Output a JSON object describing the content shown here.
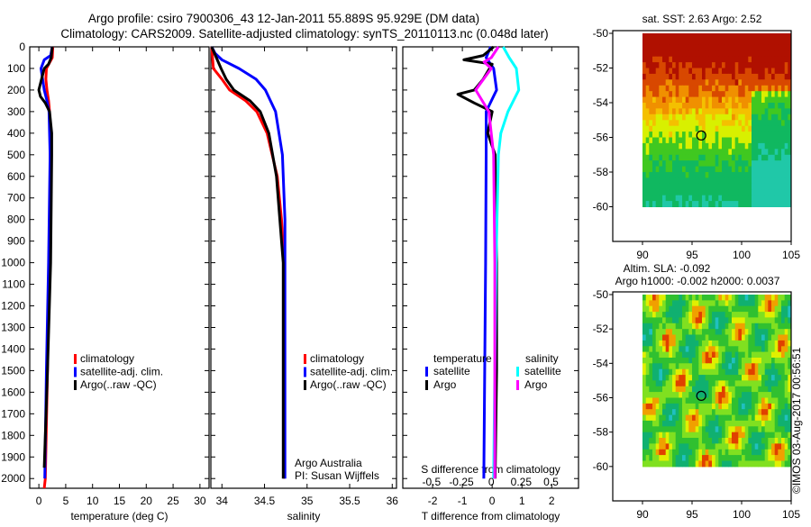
{
  "title_line1": "Argo profile: csiro 7900306_43 12-Jan-2011 55.889S 95.929E (DM data)",
  "title_line2": "Climatology: CARS2009. Satellite-adjusted climatology: synTS_20110113.nc (0.048d later)",
  "credit": "©IMOS 03-Aug-2017 00:56:51",
  "attribution_line1": "Argo Australia",
  "attribution_line2": "PI: Susan Wijffels",
  "colors": {
    "climatology": "#ff0000",
    "satellite": "#0000ff",
    "argo": "#000000",
    "sal_satellite": "#00ffff",
    "sal_argo": "#ff00ff"
  },
  "chart_data": [
    {
      "type": "line",
      "title": "",
      "xlabel": "temperature (deg C)",
      "ylabel": "",
      "xlim": [
        -1.7,
        31.7
      ],
      "ylim": [
        2045,
        0
      ],
      "xticks": [
        0,
        5,
        10,
        15,
        20,
        25,
        30
      ],
      "yticks": [
        0,
        100,
        200,
        300,
        400,
        500,
        600,
        700,
        800,
        900,
        1000,
        1100,
        1200,
        1300,
        1400,
        1500,
        1600,
        1700,
        1800,
        1900,
        2000
      ],
      "legend": [
        "climatology",
        "satellite-adj. clim.",
        "Argo(..raw -QC)"
      ],
      "series": [
        {
          "name": "climatology",
          "color": "#ff0000",
          "depth": [
            0,
            50,
            100,
            150,
            200,
            250,
            300,
            400,
            600,
            1000,
            1500,
            2000,
            2045
          ],
          "values": [
            2.6,
            2.5,
            1.4,
            1.3,
            1.5,
            1.8,
            2.0,
            2.1,
            2.1,
            1.9,
            1.6,
            1.2,
            1.0
          ]
        },
        {
          "name": "satellite-adj. clim.",
          "color": "#0000ff",
          "depth": [
            0,
            40,
            60,
            100,
            150,
            200,
            250,
            300,
            500,
            1000,
            1500,
            2000
          ],
          "values": [
            2.5,
            2.2,
            1.0,
            0.4,
            0.7,
            1.0,
            1.5,
            1.9,
            2.1,
            1.8,
            1.4,
            1.1
          ]
        },
        {
          "name": "Argo(..raw -QC)",
          "color": "#000000",
          "depth": [
            0,
            50,
            80,
            100,
            150,
            200,
            230,
            260,
            300,
            400,
            500,
            1000,
            1500,
            1950
          ],
          "values": [
            2.5,
            2.3,
            1.8,
            1.0,
            0.5,
            0.0,
            0.3,
            1.2,
            2.0,
            2.4,
            2.4,
            2.2,
            1.6,
            1.0
          ]
        }
      ]
    },
    {
      "type": "line",
      "xlabel": "salinity",
      "xlim": [
        33.87,
        36.05
      ],
      "ylim": [
        2045,
        0
      ],
      "xticks": [
        34,
        34.5,
        35,
        35.5,
        36
      ],
      "legend": [
        "climatology",
        "satellite-adj. clim.",
        "Argo(..raw -QC)"
      ],
      "series": [
        {
          "name": "climatology",
          "color": "#ff0000",
          "depth": [
            0,
            100,
            150,
            200,
            250,
            300,
            400,
            600,
            800,
            1000,
            2000
          ],
          "values": [
            33.88,
            33.9,
            34.0,
            34.09,
            34.28,
            34.41,
            34.53,
            34.65,
            34.7,
            34.73,
            34.73
          ]
        },
        {
          "name": "satellite-adj. clim.",
          "color": "#0000ff",
          "depth": [
            0,
            30,
            60,
            100,
            150,
            200,
            300,
            500,
            800,
            2000
          ],
          "values": [
            33.88,
            33.92,
            34.0,
            34.2,
            34.4,
            34.51,
            34.63,
            34.71,
            34.74,
            34.74
          ]
        },
        {
          "name": "Argo(..raw -QC)",
          "color": "#000000",
          "depth": [
            0,
            100,
            150,
            200,
            250,
            300,
            400,
            600,
            1000,
            1900,
            2000
          ],
          "values": [
            33.88,
            33.99,
            34.05,
            34.14,
            34.33,
            34.45,
            34.55,
            34.64,
            34.72,
            34.72,
            34.72
          ]
        }
      ]
    },
    {
      "type": "line",
      "xlabel": "T difference from climatology",
      "x2label": "S difference from climatology",
      "xlim": [
        -3.0,
        2.9
      ],
      "x2lim": [
        -0.74,
        0.73
      ],
      "ylim": [
        2045,
        0
      ],
      "xticks": [
        -2,
        -1,
        0,
        1,
        2
      ],
      "x2ticks": [
        -0.5,
        -0.25,
        0,
        0.25,
        0.5
      ],
      "legend_headers": [
        "temperature",
        "salinity"
      ],
      "legend": [
        "satellite",
        "Argo",
        "satellite",
        "Argo"
      ],
      "series": [
        {
          "name": "temperature satellite",
          "axis": "T",
          "color": "#0000ff",
          "depth": [
            0,
            50,
            100,
            200,
            300,
            500,
            1000,
            1500,
            2000
          ],
          "values": [
            -0.05,
            -0.2,
            0.05,
            0.15,
            -0.2,
            -0.2,
            -0.22,
            -0.25,
            -0.28
          ]
        },
        {
          "name": "temperature Argo",
          "axis": "T",
          "color": "#000000",
          "depth": [
            0,
            40,
            60,
            80,
            150,
            200,
            220,
            260,
            300,
            400,
            500,
            1000,
            1500,
            2000
          ],
          "values": [
            0.05,
            -0.3,
            -0.95,
            0.0,
            -0.3,
            -0.6,
            -1.15,
            -0.6,
            0.0,
            -0.15,
            0.1,
            0.15,
            0.15,
            0.1
          ]
        },
        {
          "name": "salinity satellite",
          "axis": "S",
          "color": "#00ffff",
          "depth": [
            0,
            50,
            100,
            200,
            300,
            400,
            500,
            1000,
            1500,
            2000
          ],
          "values": [
            0.1,
            0.15,
            0.21,
            0.23,
            0.14,
            0.08,
            0.06,
            0.04,
            0.03,
            0.02
          ]
        },
        {
          "name": "salinity Argo",
          "axis": "S",
          "color": "#ff00ff",
          "depth": [
            0,
            50,
            70,
            100,
            200,
            300,
            500,
            1000,
            2000
          ],
          "values": [
            0.06,
            0.0,
            -0.06,
            0.0,
            -0.13,
            -0.02,
            0.02,
            0.03,
            0.03
          ]
        }
      ]
    },
    {
      "type": "heatmap",
      "title": "sat. SST: 2.63 Argo: 2.52",
      "xlim": [
        87,
        105
      ],
      "ylim": [
        -62,
        -50
      ],
      "xticks": [
        90,
        95,
        100,
        105
      ],
      "yticks": [
        -50,
        -52,
        -54,
        -56,
        -58,
        -60
      ],
      "data_extent": {
        "lon": [
          90,
          105
        ],
        "lat": [
          -60,
          -50
        ]
      },
      "marker": {
        "lon": 95.929,
        "lat": -55.889
      }
    },
    {
      "type": "heatmap",
      "title_line1": "Altim. SLA: -0.092",
      "title_line2": "Argo h1000: -0.002 h2000: 0.0037",
      "xlim": [
        87,
        105
      ],
      "ylim": [
        -62,
        -50
      ],
      "xticks": [
        90,
        95,
        100,
        105
      ],
      "yticks": [
        -50,
        -52,
        -54,
        -56,
        -58,
        -60
      ],
      "data_extent": {
        "lon": [
          90,
          105
        ],
        "lat": [
          -60,
          -50
        ]
      },
      "marker": {
        "lon": 95.929,
        "lat": -55.889
      }
    }
  ]
}
